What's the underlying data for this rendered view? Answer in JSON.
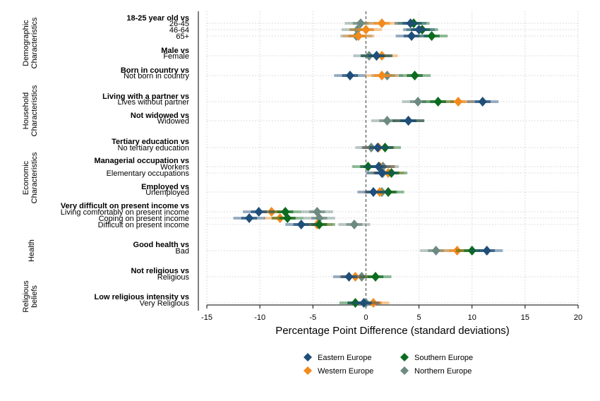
{
  "chart_data": {
    "type": "forest",
    "xlabel": "Percentage Point Difference (standard deviations)",
    "xlim": [
      -15,
      20
    ],
    "xticks": [
      "-15",
      "-10",
      "-5",
      "0",
      "5",
      "10",
      "15",
      "20"
    ],
    "reference_line": 0,
    "series": [
      {
        "name": "Eastern Europe",
        "color": "#1f4e79"
      },
      {
        "name": "Southern Europe",
        "color": "#0b6b1e"
      },
      {
        "name": "Western Europe",
        "color": "#f28a1c"
      },
      {
        "name": "Northern Europe",
        "color": "#6d8a80"
      }
    ],
    "legend": {
      "position": "bottom",
      "columns": 2,
      "order": [
        "Eastern Europe",
        "Southern Europe",
        "Western Europe",
        "Northern Europe"
      ]
    },
    "groups": [
      {
        "label": "Demographic Characteristics",
        "lines": [
          "Demographic",
          "Characteristics"
        ]
      },
      {
        "label": "Household Characteristics",
        "lines": [
          "Household",
          "Characteristics"
        ]
      },
      {
        "label": "Economic Characteristics",
        "lines": [
          "Economic",
          "Characteristics"
        ]
      },
      {
        "label": "Health",
        "lines": [
          "Health"
        ]
      },
      {
        "label": "Religious beliefs",
        "lines": [
          "Religious",
          "beliefs"
        ]
      }
    ],
    "headers": [
      "18-25 year old vs",
      "Male vs",
      "Born in country vs",
      "Living with a partner vs",
      "Not widowed vs",
      "Tertiary education vs",
      "Managerial occupation vs",
      "Employed vs",
      "Very difficult on present income vs",
      "Good health vs",
      "Not religious vs",
      "Low religious intensity vs"
    ],
    "rows": [
      {
        "label": "26-45",
        "values": {
          "Eastern Europe": 4.2,
          "Southern Europe": 4.5,
          "Western Europe": 1.5,
          "Northern Europe": -0.5
        }
      },
      {
        "label": "46-64",
        "values": {
          "Eastern Europe": 5.0,
          "Southern Europe": 5.3,
          "Western Europe": 0.0,
          "Northern Europe": -0.8
        }
      },
      {
        "label": "65+",
        "values": {
          "Eastern Europe": 4.3,
          "Southern Europe": 6.2,
          "Western Europe": -0.7,
          "Northern Europe": -0.9
        }
      },
      {
        "label": "Female",
        "values": {
          "Eastern Europe": 1.0,
          "Southern Europe": 1.0,
          "Western Europe": 1.5,
          "Northern Europe": 0.3
        }
      },
      {
        "label": "Not born in country",
        "values": {
          "Eastern Europe": -1.5,
          "Southern Europe": 4.6,
          "Western Europe": 1.5,
          "Northern Europe": 2.0
        }
      },
      {
        "label": "Lives without partner",
        "values": {
          "Eastern Europe": 11.0,
          "Southern Europe": 6.8,
          "Western Europe": 8.7,
          "Northern Europe": 4.9
        }
      },
      {
        "label": "Widowed",
        "values": {
          "Eastern Europe": 4.0,
          "Southern Europe": 4.0,
          "Western Europe": 4.0,
          "Northern Europe": 2.0
        }
      },
      {
        "label": "No tertiary education",
        "values": {
          "Eastern Europe": 1.1,
          "Southern Europe": 1.8,
          "Western Europe": 1.2,
          "Northern Europe": 0.5
        }
      },
      {
        "label": "Workers",
        "values": {
          "Eastern Europe": 1.2,
          "Southern Europe": 0.2,
          "Western Europe": 1.3,
          "Northern Europe": 1.6
        }
      },
      {
        "label": "Elementary occupations",
        "values": {
          "Eastern Europe": 1.5,
          "Southern Europe": 2.4,
          "Western Europe": 2.1,
          "Northern Europe": 1.6
        }
      },
      {
        "label": "Unemployed",
        "values": {
          "Eastern Europe": 0.7,
          "Southern Europe": 2.1,
          "Western Europe": 1.3,
          "Northern Europe": 1.5
        }
      },
      {
        "label": "Living comfortably on present income",
        "values": {
          "Eastern Europe": -10.1,
          "Southern Europe": -7.6,
          "Western Europe": -8.9,
          "Northern Europe": -4.6
        }
      },
      {
        "label": "Coping on present income",
        "values": {
          "Eastern Europe": -11.0,
          "Southern Europe": -7.4,
          "Western Europe": -8.1,
          "Northern Europe": -4.4
        }
      },
      {
        "label": "Difficult on present income",
        "values": {
          "Eastern Europe": -6.1,
          "Southern Europe": -4.4,
          "Western Europe": -4.6,
          "Northern Europe": -1.1
        }
      },
      {
        "label": "Bad",
        "values": {
          "Eastern Europe": 11.4,
          "Southern Europe": 10.0,
          "Western Europe": 8.6,
          "Northern Europe": 6.6
        }
      },
      {
        "label": "Religious",
        "values": {
          "Eastern Europe": -1.6,
          "Southern Europe": 0.9,
          "Western Europe": -1.0,
          "Northern Europe": -0.4
        }
      },
      {
        "label": "Very Religious",
        "values": {
          "Eastern Europe": -0.2,
          "Southern Europe": -1.0,
          "Western Europe": 0.7,
          "Northern Europe": 0.0
        }
      }
    ]
  }
}
